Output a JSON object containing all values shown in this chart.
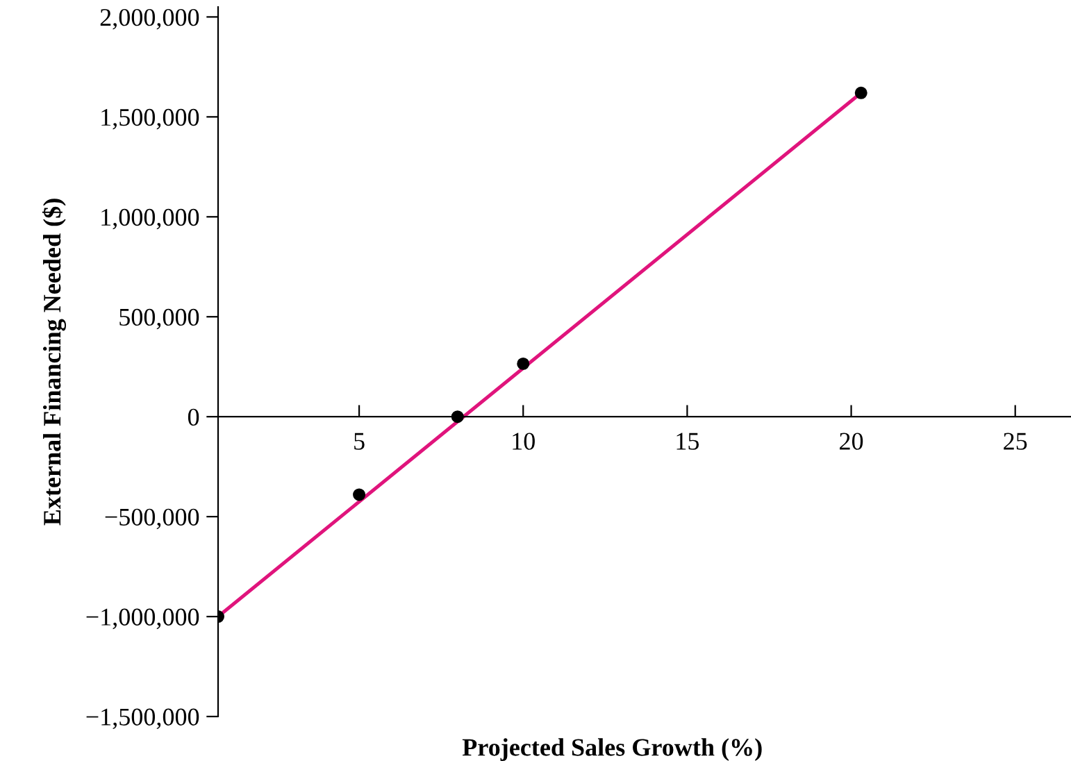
{
  "chart_data": {
    "type": "scatter",
    "xlabel": "Projected Sales Growth (%)",
    "ylabel": "External Financing Needed ($)",
    "xlim": [
      0.7,
      26.7
    ],
    "ylim": [
      -1500000,
      2050000
    ],
    "xticks": [
      5,
      10,
      15,
      20,
      25
    ],
    "yticks": [
      {
        "value": -1500000,
        "label": "−1,500,000"
      },
      {
        "value": -1000000,
        "label": "−1,000,000"
      },
      {
        "value": -500000,
        "label": "−500,000"
      },
      0,
      {
        "value": 500000,
        "label": "500,000"
      },
      {
        "value": 1000000,
        "label": "1,000,000"
      },
      {
        "value": 1500000,
        "label": "1,500,000"
      },
      {
        "value": 2000000,
        "label": "2,000,000"
      }
    ],
    "grid": false,
    "legend": false,
    "series": [
      {
        "type": "line",
        "color": "#e0147c",
        "x": [
          0.7,
          20.3
        ],
        "values": [
          -1000000,
          1620000
        ],
        "marker": "none",
        "line_style": "solid"
      },
      {
        "color": "#000000",
        "x": [
          0.7,
          5,
          8,
          10,
          20.3
        ],
        "values": [
          -1000000,
          -390000,
          0,
          265000,
          1620000
        ],
        "marker": "circle"
      }
    ]
  }
}
